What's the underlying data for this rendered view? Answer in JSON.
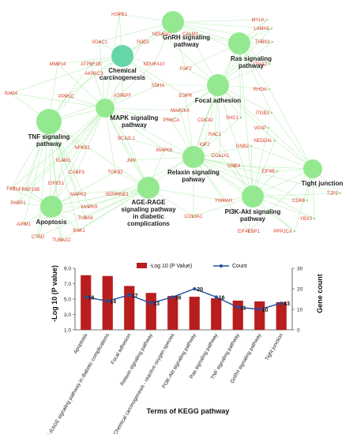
{
  "network": {
    "pathways": [
      {
        "id": "gnrh",
        "lines": [
          "GnRH signaling",
          "pathway"
        ]
      },
      {
        "id": "ras",
        "lines": [
          "Ras signaling",
          "pathway"
        ]
      },
      {
        "id": "chem",
        "lines": [
          "Chemical",
          "carcinogenesis"
        ]
      },
      {
        "id": "focal",
        "lines": [
          "Focal adhesion"
        ]
      },
      {
        "id": "mapk",
        "lines": [
          "MAPK signaling",
          "pathway"
        ]
      },
      {
        "id": "tnf",
        "lines": [
          "TNF signaling",
          "pathway"
        ]
      },
      {
        "id": "relaxin",
        "lines": [
          "Relaxin signaling",
          "pahway"
        ]
      },
      {
        "id": "tight",
        "lines": [
          "Tight junction"
        ]
      },
      {
        "id": "age",
        "lines": [
          "AGE-RAGE",
          "signaling pathway",
          "in diabetic",
          "complications"
        ]
      },
      {
        "id": "pi3k",
        "lines": [
          "PI3K-Akt signaling",
          "pathway"
        ]
      },
      {
        "id": "apop",
        "lines": [
          "Apoptosis"
        ]
      }
    ],
    "genes": [
      "HSPB1",
      "MYLK",
      "NDUFV2",
      "CALM1",
      "LAMA5",
      "VDAC1",
      "SOD1",
      "THBS1",
      "MMP14",
      "ATP5F1B",
      "NDUFA10",
      "ITGA2",
      "AKR1C3",
      "FGF2",
      "BAG4",
      "PPP5C",
      "SDHA",
      "RHOA",
      "ATP5PF",
      "EGFR",
      "MAP2K4",
      "ITGB3",
      "PRKCA",
      "CDC42",
      "SHC1",
      "VASP",
      "BCL2L1",
      "RAC1",
      "NEDD4L",
      "NFKB1",
      "GNB2",
      "ICAM1",
      "JUN",
      "MAPK8",
      "IGF2",
      "COL1A1",
      "GNB4",
      "FAS",
      "CASP3",
      "TGFB2",
      "EIF4B",
      "TNFRSF10B",
      "EIF2S1",
      "SERPINE1",
      "TJP2",
      "PARP1",
      "MAPK3",
      "MAPK9",
      "CDK6",
      "AIFM1",
      "TUBA8",
      "YWHAH",
      "COL3A1",
      "YBX3",
      "CTSD",
      "BAK1",
      "EIF4EBP1",
      "PPP2CA",
      "TUBA1C"
    ]
  },
  "chart_data": {
    "type": "bar",
    "categories": [
      "Apoptosis",
      "AGE-RAGE signaling pathway in diabetic complications",
      "Focal adhesion",
      "Relaxin signaling pathway",
      "Chemical carcinogenesis - reactive oxygen species",
      "PI3K-Akt signaling pathway",
      "Ras signaling pathway",
      "TNF signaling pathway",
      "GnRH signaling pathway",
      "Tight junction"
    ],
    "series": [
      {
        "name": "-Log 10 (P Value)",
        "kind": "bar",
        "axis": "left",
        "color": "#b81e1e",
        "values": [
          8.1,
          8.0,
          6.7,
          5.8,
          5.4,
          5.3,
          5.1,
          4.8,
          4.7,
          4.6
        ]
      },
      {
        "name": "Count",
        "kind": "line",
        "axis": "right",
        "color": "#1f4e9c",
        "values": [
          16,
          14,
          17,
          13,
          16,
          20,
          16,
          11,
          10,
          13
        ]
      }
    ],
    "ylabel": "-Log 10 (P value)",
    "y2label": "Gene count",
    "xlabel": "Terms of KEGG pathway",
    "ylim": [
      1.0,
      9.0
    ],
    "yticks": [
      "1.0",
      "3.0",
      "5.0",
      "7.0",
      "9.0"
    ],
    "y2lim": [
      0,
      30
    ],
    "y2ticks": [
      "0",
      "10",
      "20",
      "30"
    ],
    "legend_position": "top-center"
  }
}
